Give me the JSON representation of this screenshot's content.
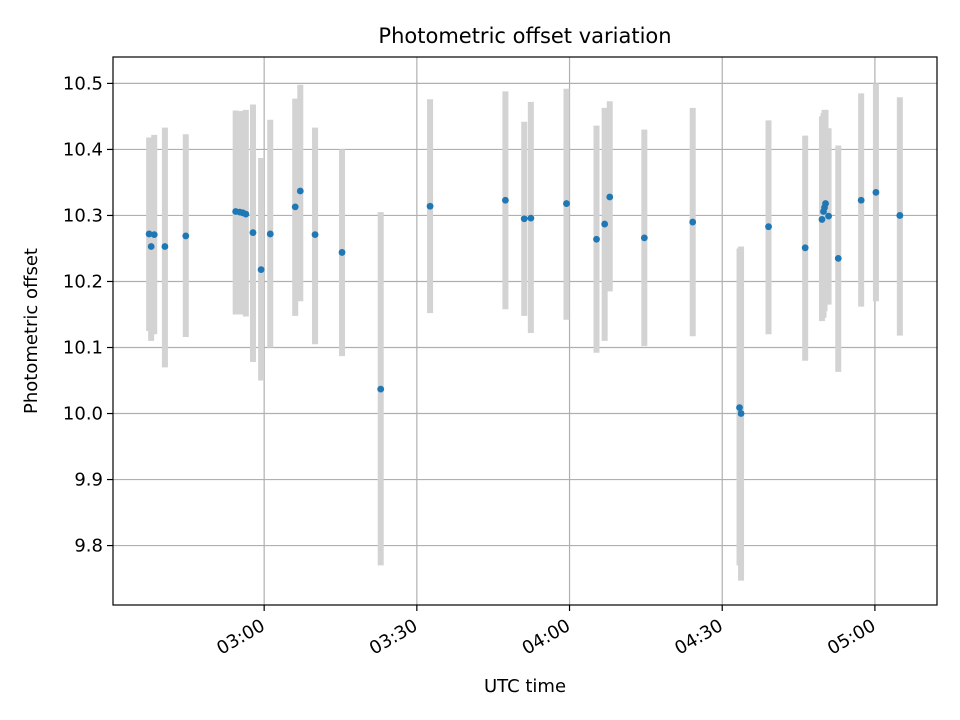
{
  "chart_data": {
    "type": "scatter",
    "title": "Photometric offset variation",
    "xlabel": "UTC time",
    "ylabel": "Photometric offset",
    "grid": true,
    "x_ticks": [
      "03:00",
      "03:30",
      "04:00",
      "04:30",
      "05:00"
    ],
    "x_tick_minutes": [
      180,
      210,
      240,
      270,
      300
    ],
    "xlim_minutes": [
      150.3,
      312.2
    ],
    "y_ticks": [
      "9.8",
      "9.9",
      "10.0",
      "10.1",
      "10.2",
      "10.3",
      "10.4",
      "10.5"
    ],
    "ylim": [
      9.71,
      10.54
    ],
    "point_color": "#1f77b4",
    "errorbar_color": "#d3d3d3",
    "points": [
      {
        "x": 157.4,
        "y": 10.272,
        "lo": 10.125,
        "hi": 10.418
      },
      {
        "x": 157.8,
        "y": 10.253,
        "lo": 10.11,
        "hi": 10.405
      },
      {
        "x": 158.4,
        "y": 10.271,
        "lo": 10.12,
        "hi": 10.422
      },
      {
        "x": 160.5,
        "y": 10.253,
        "lo": 10.07,
        "hi": 10.433
      },
      {
        "x": 164.6,
        "y": 10.269,
        "lo": 10.116,
        "hi": 10.423
      },
      {
        "x": 174.4,
        "y": 10.306,
        "lo": 10.15,
        "hi": 10.459
      },
      {
        "x": 175.2,
        "y": 10.305,
        "lo": 10.15,
        "hi": 10.458
      },
      {
        "x": 175.8,
        "y": 10.304,
        "lo": 10.15,
        "hi": 10.458
      },
      {
        "x": 176.4,
        "y": 10.302,
        "lo": 10.147,
        "hi": 10.46
      },
      {
        "x": 177.8,
        "y": 10.274,
        "lo": 10.078,
        "hi": 10.468
      },
      {
        "x": 179.4,
        "y": 10.218,
        "lo": 10.05,
        "hi": 10.387
      },
      {
        "x": 181.2,
        "y": 10.272,
        "lo": 10.1,
        "hi": 10.445
      },
      {
        "x": 186.1,
        "y": 10.313,
        "lo": 10.148,
        "hi": 10.477
      },
      {
        "x": 187.1,
        "y": 10.337,
        "lo": 10.17,
        "hi": 10.498
      },
      {
        "x": 190.0,
        "y": 10.271,
        "lo": 10.105,
        "hi": 10.433
      },
      {
        "x": 195.3,
        "y": 10.244,
        "lo": 10.087,
        "hi": 10.4
      },
      {
        "x": 202.9,
        "y": 10.037,
        "lo": 9.77,
        "hi": 10.305
      },
      {
        "x": 212.6,
        "y": 10.314,
        "lo": 10.152,
        "hi": 10.476
      },
      {
        "x": 227.4,
        "y": 10.323,
        "lo": 10.158,
        "hi": 10.488
      },
      {
        "x": 231.1,
        "y": 10.295,
        "lo": 10.148,
        "hi": 10.442
      },
      {
        "x": 232.4,
        "y": 10.296,
        "lo": 10.122,
        "hi": 10.472
      },
      {
        "x": 239.4,
        "y": 10.318,
        "lo": 10.142,
        "hi": 10.492
      },
      {
        "x": 245.3,
        "y": 10.264,
        "lo": 10.092,
        "hi": 10.436
      },
      {
        "x": 246.9,
        "y": 10.287,
        "lo": 10.11,
        "hi": 10.463
      },
      {
        "x": 247.9,
        "y": 10.328,
        "lo": 10.185,
        "hi": 10.473
      },
      {
        "x": 254.7,
        "y": 10.266,
        "lo": 10.102,
        "hi": 10.43
      },
      {
        "x": 264.2,
        "y": 10.29,
        "lo": 10.117,
        "hi": 10.463
      },
      {
        "x": 273.4,
        "y": 10.009,
        "lo": 9.77,
        "hi": 10.25
      },
      {
        "x": 273.7,
        "y": 10.0,
        "lo": 9.747,
        "hi": 10.253
      },
      {
        "x": 279.1,
        "y": 10.283,
        "lo": 10.12,
        "hi": 10.444
      },
      {
        "x": 286.3,
        "y": 10.251,
        "lo": 10.08,
        "hi": 10.421
      },
      {
        "x": 289.6,
        "y": 10.294,
        "lo": 10.14,
        "hi": 10.45
      },
      {
        "x": 289.9,
        "y": 10.306,
        "lo": 10.145,
        "hi": 10.455
      },
      {
        "x": 290.1,
        "y": 10.312,
        "lo": 10.155,
        "hi": 10.46
      },
      {
        "x": 290.3,
        "y": 10.318,
        "lo": 10.165,
        "hi": 10.46
      },
      {
        "x": 290.9,
        "y": 10.299,
        "lo": 10.165,
        "hi": 10.432
      },
      {
        "x": 292.8,
        "y": 10.235,
        "lo": 10.063,
        "hi": 10.406
      },
      {
        "x": 297.3,
        "y": 10.323,
        "lo": 10.162,
        "hi": 10.485
      },
      {
        "x": 300.2,
        "y": 10.335,
        "lo": 10.17,
        "hi": 10.5
      },
      {
        "x": 304.9,
        "y": 10.3,
        "lo": 10.118,
        "hi": 10.479
      }
    ]
  }
}
